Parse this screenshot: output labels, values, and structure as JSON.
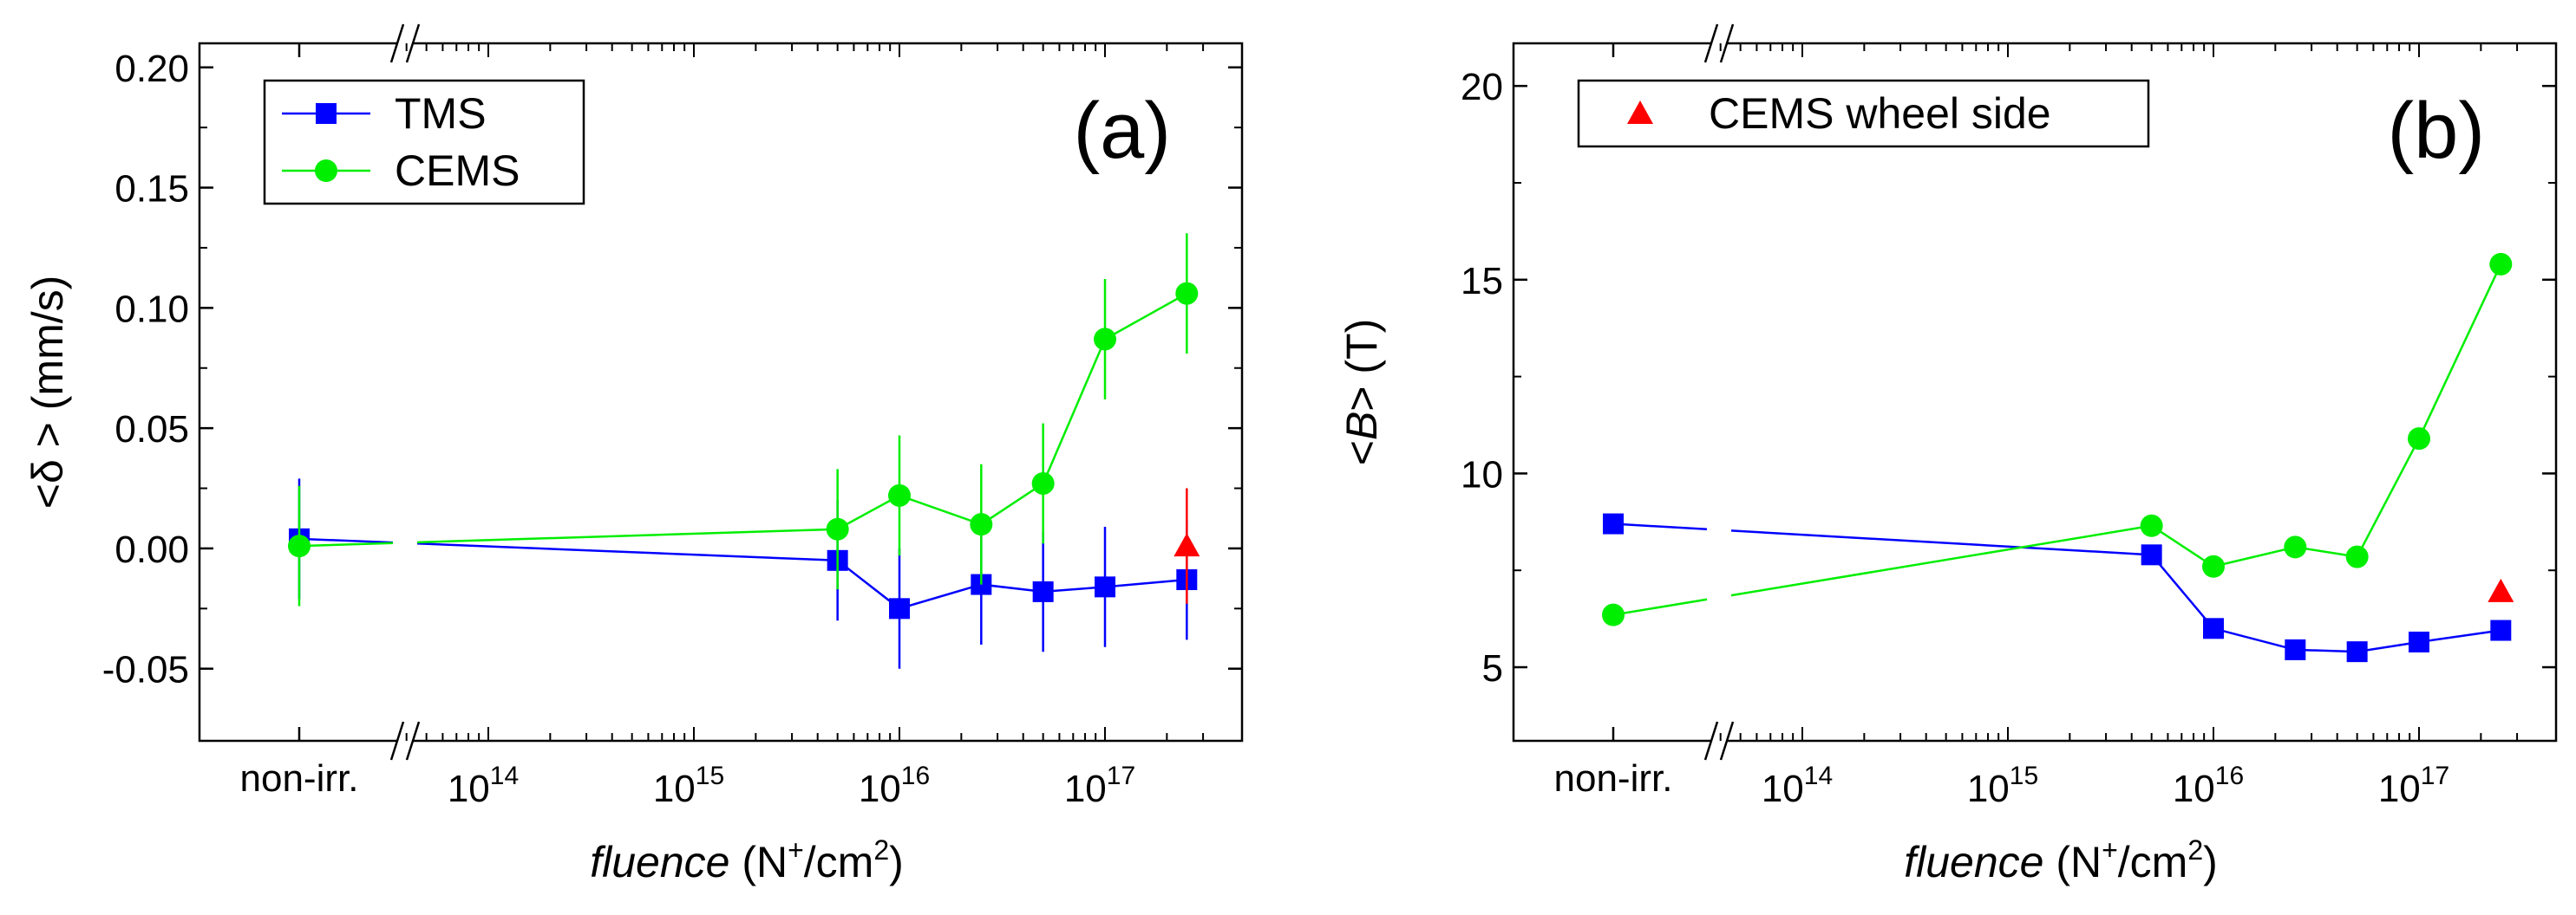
{
  "chart_data": [
    {
      "id": "a",
      "type": "scatter",
      "panel_label": "(a)",
      "xlabel": {
        "italic": "fluence",
        "unit_pre": " (N",
        "sup1": "+",
        "unit_mid": "/cm",
        "sup2": "2",
        "unit_post": ")"
      },
      "ylabel": "<δ >  (mm/s)",
      "ylim": [
        -0.08,
        0.21
      ],
      "yticks": [
        {
          "value": -0.05,
          "label": "-0.05"
        },
        {
          "value": 0.0,
          "label": "0.00"
        },
        {
          "value": 0.05,
          "label": "0.05"
        },
        {
          "value": 0.1,
          "label": "0.10"
        },
        {
          "value": 0.15,
          "label": "0.15"
        },
        {
          "value": 0.2,
          "label": "0.20"
        }
      ],
      "x_category_label": "non-irr.",
      "x_decade_labels": [
        {
          "base": "10",
          "exp": "14"
        },
        {
          "base": "10",
          "exp": "15"
        },
        {
          "base": "10",
          "exp": "16"
        },
        {
          "base": "10",
          "exp": "17"
        }
      ],
      "x_log_range": [
        13.55,
        17.55
      ],
      "legend_position": "top-left",
      "series": [
        {
          "name": "TMS",
          "color": "#0000ff",
          "marker": "square",
          "in_legend": true,
          "nonirr": {
            "y": 0.004,
            "err": 0.025
          },
          "points": [
            {
              "x": 5000000000000000.0,
              "y": -0.005,
              "err": 0.025
            },
            {
              "x": 1e+16,
              "y": -0.025,
              "err": 0.025
            },
            {
              "x": 2.5e+16,
              "y": -0.015,
              "err": 0.025
            },
            {
              "x": 5e+16,
              "y": -0.018,
              "err": 0.025
            },
            {
              "x": 1e+17,
              "y": -0.016,
              "err": 0.025
            },
            {
              "x": 2.5e+17,
              "y": -0.013,
              "err": 0.025
            }
          ]
        },
        {
          "name": "CEMS",
          "color": "#00ee00",
          "marker": "circle",
          "in_legend": true,
          "nonirr": {
            "y": 0.001,
            "err": 0.025
          },
          "points": [
            {
              "x": 5000000000000000.0,
              "y": 0.008,
              "err": 0.025
            },
            {
              "x": 1e+16,
              "y": 0.022,
              "err": 0.025
            },
            {
              "x": 2.5e+16,
              "y": 0.01,
              "err": 0.025
            },
            {
              "x": 5e+16,
              "y": 0.027,
              "err": 0.025
            },
            {
              "x": 1e+17,
              "y": 0.087,
              "err": 0.025
            },
            {
              "x": 2.5e+17,
              "y": 0.106,
              "err": 0.025
            }
          ]
        },
        {
          "name": "CEMS wheel side",
          "color": "#ff0000",
          "marker": "triangle",
          "in_legend": false,
          "nonirr": null,
          "points": [
            {
              "x": 2.5e+17,
              "y": 0.001,
              "err": 0.024
            }
          ]
        }
      ]
    },
    {
      "id": "b",
      "type": "scatter",
      "panel_label": "(b)",
      "xlabel": {
        "italic": "fluence",
        "unit_pre": " (N",
        "sup1": "+",
        "unit_mid": "/cm",
        "sup2": "2",
        "unit_post": ")"
      },
      "ylabel_pre": "<",
      "ylabel_italic": "B",
      "ylabel_post": "> (T)",
      "ylim": [
        3.1,
        21.1
      ],
      "yticks": [
        {
          "value": 5,
          "label": "5"
        },
        {
          "value": 10,
          "label": "10"
        },
        {
          "value": 15,
          "label": "15"
        },
        {
          "value": 20,
          "label": "20"
        }
      ],
      "x_category_label": "non-irr.",
      "x_decade_labels": [
        {
          "base": "10",
          "exp": "14"
        },
        {
          "base": "10",
          "exp": "15"
        },
        {
          "base": "10",
          "exp": "16"
        },
        {
          "base": "10",
          "exp": "17"
        }
      ],
      "x_log_range": [
        13.55,
        17.55
      ],
      "legend_position": "top-left",
      "series": [
        {
          "name": "TMS",
          "color": "#0000ff",
          "marker": "square",
          "in_legend": false,
          "nonirr": {
            "y": 8.7,
            "err": 0.2
          },
          "points": [
            {
              "x": 5000000000000000.0,
              "y": 7.9,
              "err": 0.2
            },
            {
              "x": 1e+16,
              "y": 6.0,
              "err": 0.2
            },
            {
              "x": 2.5e+16,
              "y": 5.45,
              "err": 0.2
            },
            {
              "x": 5e+16,
              "y": 5.4,
              "err": 0.2
            },
            {
              "x": 1e+17,
              "y": 5.65,
              "err": 0.2
            },
            {
              "x": 2.5e+17,
              "y": 5.95,
              "err": 0.2
            }
          ]
        },
        {
          "name": "CEMS",
          "color": "#00ee00",
          "marker": "circle",
          "in_legend": false,
          "nonirr": {
            "y": 6.35,
            "err": 0.0
          },
          "points": [
            {
              "x": 5000000000000000.0,
              "y": 8.65,
              "err": 0.0
            },
            {
              "x": 1e+16,
              "y": 7.6,
              "err": 0.0
            },
            {
              "x": 2.5e+16,
              "y": 8.1,
              "err": 0.0
            },
            {
              "x": 5e+16,
              "y": 7.85,
              "err": 0.0
            },
            {
              "x": 1e+17,
              "y": 10.9,
              "err": 0.0
            },
            {
              "x": 2.5e+17,
              "y": 15.4,
              "err": 0.0
            }
          ]
        },
        {
          "name": "CEMS wheel side",
          "color": "#ff0000",
          "marker": "triangle",
          "in_legend": true,
          "nonirr": null,
          "points": [
            {
              "x": 2.5e+17,
              "y": 6.95,
              "err": 0.2
            }
          ]
        }
      ]
    }
  ]
}
